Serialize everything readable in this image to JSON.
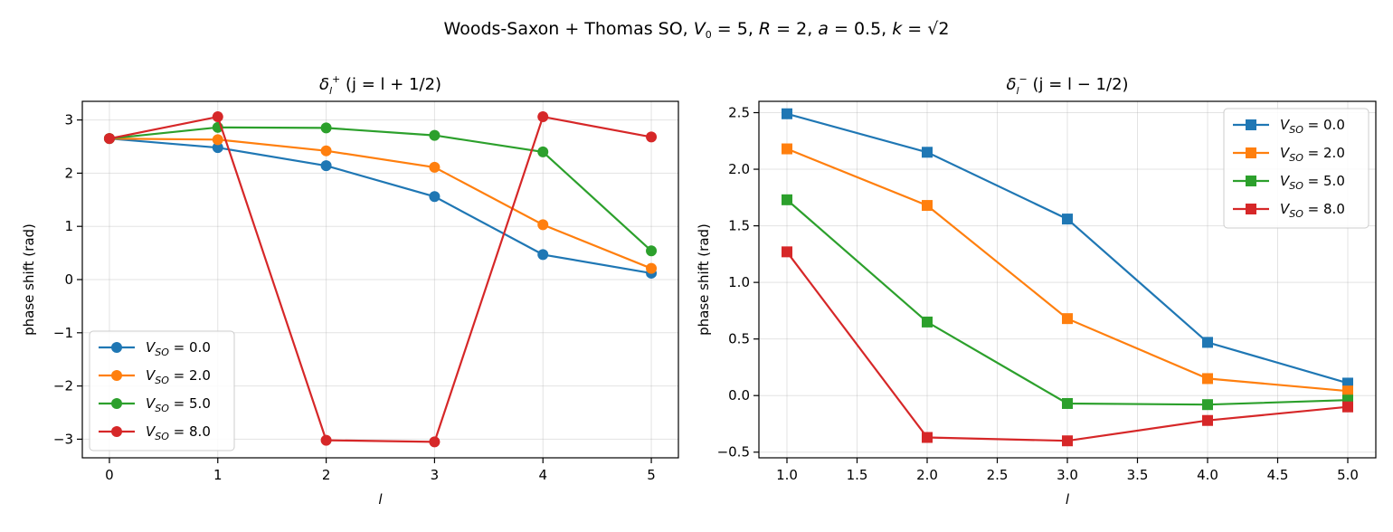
{
  "figure": {
    "suptitle_text": "Woods-Saxon + Thomas SO, ",
    "suptitle_v0": "V",
    "suptitle_v0_sub": "0",
    "suptitle_v0_val": " = 5,  ",
    "suptitle_r": "R",
    "suptitle_r_val": " = 2,  ",
    "suptitle_a": "a",
    "suptitle_a_val": " = 0.5,  ",
    "suptitle_k": "k",
    "suptitle_k_val": " = √2"
  },
  "chart_data": [
    {
      "type": "line",
      "title_delta": "δ",
      "title_sub": "l",
      "title_sup": "+",
      "title_rest": "  (j = l + 1/2)",
      "xlabel": "l",
      "ylabel": "phase shift (rad)",
      "x": [
        0,
        1,
        2,
        3,
        4,
        5
      ],
      "xlim": [
        -0.25,
        5.25
      ],
      "ylim": [
        -3.35,
        3.35
      ],
      "xticks": [
        0,
        1,
        2,
        3,
        4,
        5
      ],
      "xtick_labels": [
        "0",
        "1",
        "2",
        "3",
        "4",
        "5"
      ],
      "yticks": [
        -3,
        -2,
        -1,
        0,
        1,
        2,
        3
      ],
      "ytick_labels": [
        "−3",
        "−2",
        "−1",
        "0",
        "1",
        "2",
        "3"
      ],
      "marker": "circle",
      "grid": true,
      "legend_position": "lower-left",
      "series": [
        {
          "name": "V",
          "name_sub": "SO",
          "name_val": " = 0.0",
          "color": "#1f77b4",
          "values": [
            2.65,
            2.48,
            2.14,
            1.56,
            0.47,
            0.12
          ]
        },
        {
          "name": "V",
          "name_sub": "SO",
          "name_val": " = 2.0",
          "color": "#ff7f0e",
          "values": [
            2.65,
            2.63,
            2.42,
            2.11,
            1.03,
            0.21
          ]
        },
        {
          "name": "V",
          "name_sub": "SO",
          "name_val": " = 5.0",
          "color": "#2ca02c",
          "values": [
            2.65,
            2.86,
            2.85,
            2.71,
            2.4,
            0.54
          ]
        },
        {
          "name": "V",
          "name_sub": "SO",
          "name_val": " = 8.0",
          "color": "#d62728",
          "values": [
            2.65,
            3.06,
            -3.02,
            -3.05,
            3.06,
            2.68
          ]
        }
      ]
    },
    {
      "type": "line",
      "title_delta": "δ",
      "title_sub": "l",
      "title_sup": "−",
      "title_rest": "  (j = l − 1/2)",
      "xlabel": "l",
      "ylabel": "phase shift (rad)",
      "x": [
        1.0,
        2.0,
        3.0,
        4.0,
        5.0
      ],
      "xlim": [
        0.8,
        5.2
      ],
      "ylim": [
        -0.55,
        2.6
      ],
      "xticks": [
        1.0,
        1.5,
        2.0,
        2.5,
        3.0,
        3.5,
        4.0,
        4.5,
        5.0
      ],
      "xtick_labels": [
        "1.0",
        "1.5",
        "2.0",
        "2.5",
        "3.0",
        "3.5",
        "4.0",
        "4.5",
        "5.0"
      ],
      "yticks": [
        -0.5,
        0.0,
        0.5,
        1.0,
        1.5,
        2.0,
        2.5
      ],
      "ytick_labels": [
        "−0.5",
        "0.0",
        "0.5",
        "1.0",
        "1.5",
        "2.0",
        "2.5"
      ],
      "marker": "square",
      "grid": true,
      "legend_position": "upper-right",
      "series": [
        {
          "name": "V",
          "name_sub": "SO",
          "name_val": " = 0.0",
          "color": "#1f77b4",
          "values": [
            2.49,
            2.15,
            1.56,
            0.47,
            0.11
          ]
        },
        {
          "name": "V",
          "name_sub": "SO",
          "name_val": " = 2.0",
          "color": "#ff7f0e",
          "values": [
            2.18,
            1.68,
            0.68,
            0.15,
            0.04
          ]
        },
        {
          "name": "V",
          "name_sub": "SO",
          "name_val": " = 5.0",
          "color": "#2ca02c",
          "values": [
            1.73,
            0.65,
            -0.07,
            -0.08,
            -0.04
          ]
        },
        {
          "name": "V",
          "name_sub": "SO",
          "name_val": " = 8.0",
          "color": "#d62728",
          "values": [
            1.27,
            -0.37,
            -0.4,
            -0.22,
            -0.1
          ]
        }
      ]
    }
  ]
}
